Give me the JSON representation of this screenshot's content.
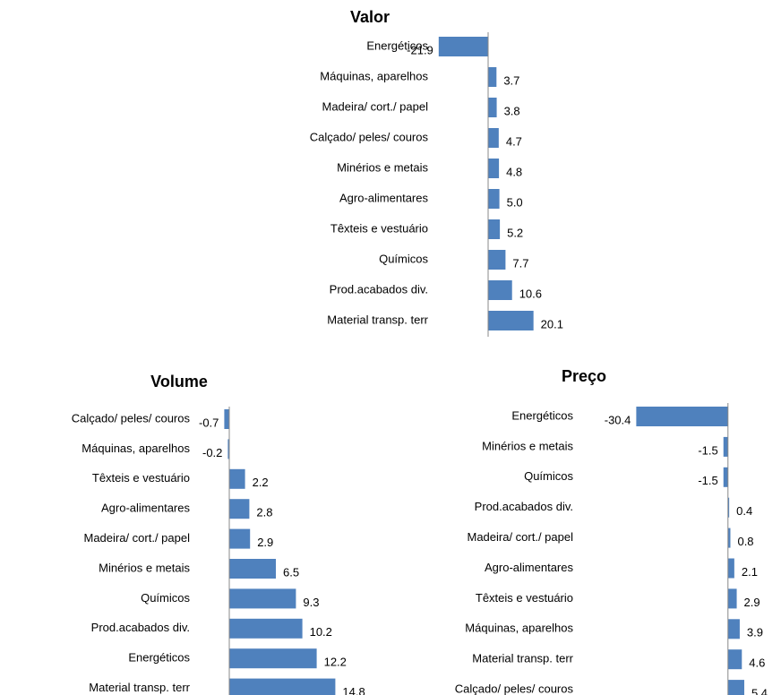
{
  "chart_data": [
    {
      "type": "bar",
      "orientation": "horizontal",
      "title": "Valor",
      "color": "#4f81bd",
      "xlim": [
        -25,
        25
      ],
      "categories": [
        "Energéticos",
        "Máquinas, aparelhos",
        "Madeira/ cort./ papel",
        "Calçado/ peles/ couros",
        "Minérios e metais",
        "Agro-alimentares",
        "Têxteis e vestuário",
        "Químicos",
        "Prod.acabados div.",
        "Material transp. terr"
      ],
      "values": [
        -21.9,
        3.7,
        3.8,
        4.7,
        4.8,
        5.0,
        5.2,
        7.7,
        10.6,
        20.1
      ],
      "value_labels": [
        "-21.9",
        "3.7",
        "3.8",
        "4.7",
        "4.8",
        "5.0",
        "5.2",
        "7.7",
        "10.6",
        "20.1"
      ]
    },
    {
      "type": "bar",
      "orientation": "horizontal",
      "title": "Volume",
      "color": "#4f81bd",
      "xlim": [
        -2,
        16
      ],
      "categories": [
        "Calçado/ peles/ couros",
        "Máquinas, aparelhos",
        "Têxteis e vestuário",
        "Agro-alimentares",
        "Madeira/ cort./ papel",
        "Minérios e metais",
        "Químicos",
        "Prod.acabados div.",
        "Energéticos",
        "Material transp. terr"
      ],
      "values": [
        -0.7,
        -0.2,
        2.2,
        2.8,
        2.9,
        6.5,
        9.3,
        10.2,
        12.2,
        14.8
      ],
      "value_labels": [
        "-0.7",
        "-0.2",
        "2.2",
        "2.8",
        "2.9",
        "6.5",
        "9.3",
        "10.2",
        "12.2",
        "14.8"
      ]
    },
    {
      "type": "bar",
      "orientation": "horizontal",
      "title": "Preço",
      "color": "#4f81bd",
      "xlim": [
        -32,
        6
      ],
      "categories": [
        "Energéticos",
        "Minérios e metais",
        "Químicos",
        "Prod.acabados div.",
        "Madeira/ cort./ papel",
        "Agro-alimentares",
        "Têxteis e vestuário",
        "Máquinas, aparelhos",
        "Material transp. terr",
        "Calçado/ peles/ couros"
      ],
      "values": [
        -30.4,
        -1.5,
        -1.5,
        0.4,
        0.8,
        2.1,
        2.9,
        3.9,
        4.6,
        5.4
      ],
      "value_labels": [
        "-30.4",
        "-1.5",
        "-1.5",
        "0.4",
        "0.8",
        "2.1",
        "2.9",
        "3.9",
        "4.6",
        "5.4"
      ]
    }
  ]
}
